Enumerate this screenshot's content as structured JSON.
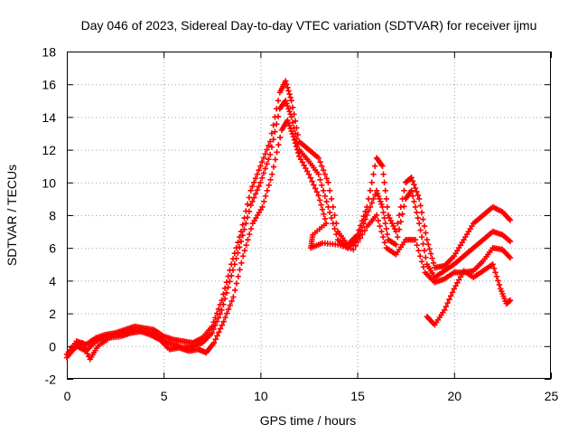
{
  "chart_data": {
    "type": "scatter",
    "title": "Day 046 of 2023, Sidereal Day-to-day VTEC variation (SDTVAR) for receiver ijmu",
    "xlabel": "GPS time / hours",
    "ylabel": "SDTVAR / TECUs",
    "xlim": [
      0,
      25
    ],
    "ylim": [
      -2,
      18
    ],
    "x_ticks": [
      "0",
      "5",
      "10",
      "15",
      "20",
      "25"
    ],
    "y_ticks": [
      "-2",
      "0",
      "2",
      "4",
      "6",
      "8",
      "10",
      "12",
      "14",
      "16",
      "18"
    ],
    "grid": true,
    "marker": "+",
    "series_color": "#ff0000",
    "series": [
      {
        "name": "track-1",
        "points": [
          [
            0.0,
            -0.5
          ],
          [
            0.5,
            0.3
          ],
          [
            1.0,
            0.1
          ],
          [
            1.5,
            0.5
          ],
          [
            2.0,
            0.7
          ],
          [
            2.5,
            0.8
          ],
          [
            3.0,
            1.0
          ],
          [
            3.5,
            1.2
          ],
          [
            4.0,
            1.1
          ],
          [
            4.5,
            1.0
          ],
          [
            5.0,
            0.6
          ],
          [
            5.5,
            0.4
          ],
          [
            6.0,
            0.3
          ],
          [
            6.5,
            0.2
          ],
          [
            7.0,
            0.5
          ],
          [
            7.5,
            1.2
          ],
          [
            8.0,
            2.8
          ],
          [
            8.5,
            5.0
          ],
          [
            9.0,
            7.0
          ],
          [
            9.5,
            9.5
          ],
          [
            10.0,
            11.0
          ],
          [
            10.5,
            12.5
          ],
          [
            11.0,
            15.5
          ],
          [
            11.3,
            16.2
          ],
          [
            11.6,
            15.0
          ],
          [
            12.0,
            12.5
          ],
          [
            12.5,
            12.0
          ],
          [
            13.0,
            11.5
          ],
          [
            13.5,
            10.0
          ],
          [
            14.0,
            7.0
          ],
          [
            14.5,
            6.2
          ],
          [
            15.0,
            6.8
          ],
          [
            15.5,
            8.5
          ],
          [
            16.0,
            11.5
          ],
          [
            16.3,
            11.0
          ],
          [
            16.6,
            8.0
          ],
          [
            17.0,
            7.0
          ],
          [
            17.5,
            10.0
          ],
          [
            17.8,
            10.3
          ],
          [
            18.2,
            9.0
          ],
          [
            18.6,
            6.5
          ],
          [
            19.0,
            4.8
          ],
          [
            19.5,
            4.9
          ],
          [
            20.0,
            5.5
          ],
          [
            20.5,
            6.5
          ],
          [
            21.0,
            7.5
          ],
          [
            21.5,
            8.0
          ],
          [
            22.0,
            8.5
          ],
          [
            22.5,
            8.2
          ],
          [
            22.9,
            7.7
          ]
        ]
      },
      {
        "name": "track-2",
        "points": [
          [
            0.0,
            -0.7
          ],
          [
            0.5,
            0.0
          ],
          [
            1.0,
            -0.3
          ],
          [
            1.5,
            0.3
          ],
          [
            2.0,
            0.6
          ],
          [
            2.5,
            0.7
          ],
          [
            3.0,
            0.9
          ],
          [
            3.5,
            1.0
          ],
          [
            4.0,
            0.9
          ],
          [
            4.5,
            0.8
          ],
          [
            5.0,
            0.3
          ],
          [
            5.5,
            0.1
          ],
          [
            6.0,
            -0.1
          ],
          [
            6.5,
            0.0
          ],
          [
            7.0,
            0.2
          ],
          [
            7.5,
            0.8
          ],
          [
            8.0,
            2.2
          ],
          [
            8.5,
            4.3
          ],
          [
            9.0,
            6.4
          ],
          [
            9.5,
            8.6
          ],
          [
            10.0,
            10.0
          ],
          [
            10.5,
            11.7
          ],
          [
            11.0,
            14.5
          ],
          [
            11.3,
            15.0
          ],
          [
            11.6,
            14.0
          ],
          [
            12.0,
            12.0
          ],
          [
            12.5,
            11.3
          ],
          [
            13.0,
            10.5
          ],
          [
            13.5,
            8.5
          ],
          [
            14.0,
            6.5
          ],
          [
            14.5,
            6.0
          ],
          [
            15.0,
            6.5
          ],
          [
            15.5,
            8.0
          ],
          [
            16.0,
            9.5
          ],
          [
            16.3,
            8.5
          ],
          [
            16.6,
            6.5
          ],
          [
            17.0,
            6.2
          ],
          [
            17.5,
            9.0
          ],
          [
            17.8,
            9.5
          ],
          [
            18.2,
            7.5
          ],
          [
            18.6,
            5.0
          ],
          [
            19.0,
            4.2
          ],
          [
            19.5,
            4.6
          ],
          [
            20.0,
            5.0
          ],
          [
            20.5,
            5.5
          ],
          [
            21.0,
            6.0
          ],
          [
            21.5,
            6.5
          ],
          [
            22.0,
            7.0
          ],
          [
            22.5,
            6.8
          ],
          [
            22.9,
            6.4
          ]
        ]
      },
      {
        "name": "track-3",
        "points": [
          [
            0.3,
            -0.2
          ],
          [
            0.8,
            0.2
          ],
          [
            1.2,
            -0.8
          ],
          [
            1.6,
            0.0
          ],
          [
            2.2,
            0.5
          ],
          [
            2.8,
            0.6
          ],
          [
            3.3,
            0.8
          ],
          [
            3.8,
            0.9
          ],
          [
            4.3,
            0.7
          ],
          [
            4.8,
            0.4
          ],
          [
            5.3,
            -0.2
          ],
          [
            5.8,
            -0.1
          ],
          [
            6.3,
            -0.3
          ],
          [
            6.8,
            -0.2
          ],
          [
            7.2,
            -0.4
          ],
          [
            7.6,
            0.2
          ],
          [
            8.1,
            1.5
          ],
          [
            8.6,
            3.0
          ],
          [
            9.1,
            5.5
          ],
          [
            9.6,
            7.5
          ],
          [
            10.1,
            8.5
          ],
          [
            10.6,
            10.5
          ],
          [
            11.1,
            13.2
          ],
          [
            11.4,
            13.8
          ],
          [
            11.7,
            12.8
          ],
          [
            12.0,
            11.6
          ],
          [
            12.5,
            10.5
          ],
          [
            13.0,
            9.2
          ],
          [
            13.4,
            7.5
          ],
          [
            12.7,
            6.8
          ],
          [
            12.6,
            6.0
          ],
          [
            13.2,
            6.3
          ],
          [
            14.0,
            6.2
          ],
          [
            14.8,
            5.9
          ],
          [
            15.5,
            7.3
          ],
          [
            16.0,
            8.0
          ],
          [
            16.5,
            6.0
          ],
          [
            17.0,
            5.6
          ],
          [
            17.5,
            6.5
          ],
          [
            18.0,
            6.5
          ],
          [
            18.5,
            4.5
          ],
          [
            19.0,
            3.9
          ],
          [
            19.5,
            4.1
          ],
          [
            20.0,
            4.5
          ],
          [
            20.5,
            4.5
          ],
          [
            21.0,
            4.6
          ],
          [
            21.5,
            5.2
          ],
          [
            22.0,
            6.0
          ],
          [
            22.5,
            5.9
          ],
          [
            22.9,
            5.4
          ]
        ]
      },
      {
        "name": "track-4",
        "points": [
          [
            18.6,
            1.8
          ],
          [
            19.0,
            1.3
          ],
          [
            19.5,
            2.2
          ],
          [
            20.0,
            3.5
          ],
          [
            20.5,
            4.6
          ],
          [
            21.0,
            4.2
          ],
          [
            21.5,
            4.6
          ],
          [
            22.0,
            5.0
          ],
          [
            22.4,
            3.5
          ],
          [
            22.7,
            2.6
          ],
          [
            22.9,
            2.8
          ]
        ]
      }
    ]
  }
}
